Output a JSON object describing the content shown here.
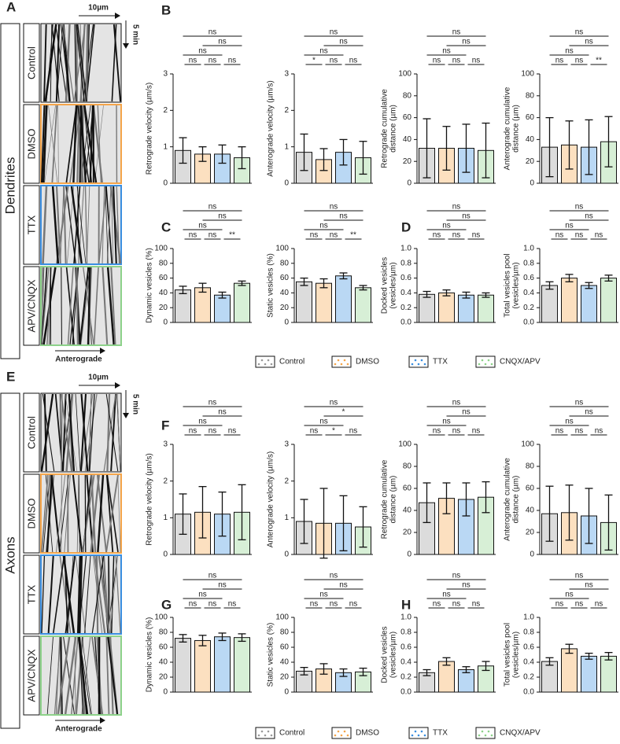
{
  "panels": {
    "dendrites": {
      "letter": "A",
      "region": "Dendrites",
      "scale_x": "10µm",
      "scale_t": "5 min",
      "direction": "Anterograde",
      "conditions": [
        "Control",
        "DMSO",
        "TTX",
        "APV/CNQX"
      ]
    },
    "axons": {
      "letter": "E",
      "region": "Axons",
      "scale_x": "10µm",
      "scale_t": "5 min",
      "direction": "Anterograde",
      "conditions": [
        "Control",
        "DMSO",
        "TTX",
        "APV/CNQX"
      ]
    }
  },
  "row_labels": [
    "B",
    "C",
    "D",
    "F",
    "G",
    "H"
  ],
  "legend": [
    {
      "name": "Control",
      "color": "#9a9a9a"
    },
    {
      "name": "DMSO",
      "color": "#f5a54a"
    },
    {
      "name": "TTX",
      "color": "#3a8ee0"
    },
    {
      "name": "CNQX/APV",
      "color": "#8dd28a"
    }
  ],
  "chart_data": [
    {
      "type": "bar",
      "ylabel": [
        "Retrograde velocity (µm/s)"
      ],
      "ylim": [
        0,
        3
      ],
      "yticks": [
        0,
        1,
        2,
        3
      ],
      "values": [
        0.9,
        0.8,
        0.8,
        0.7
      ],
      "errors": [
        0.35,
        0.2,
        0.25,
        0.3
      ],
      "significance": [
        "ns",
        "ns",
        "ns",
        "ns",
        "ns",
        "ns"
      ]
    },
    {
      "type": "bar",
      "ylabel": [
        "Anterograde velocity (µm/s)"
      ],
      "ylim": [
        0,
        3
      ],
      "yticks": [
        0,
        1,
        2,
        3
      ],
      "values": [
        0.85,
        0.65,
        0.85,
        0.7
      ],
      "errors": [
        0.5,
        0.3,
        0.35,
        0.45
      ],
      "significance": [
        "ns",
        "ns",
        "ns",
        "*",
        "ns",
        "ns"
      ]
    },
    {
      "type": "bar",
      "ylabel": [
        "Retrograde cumulative",
        "distance (µm)"
      ],
      "ylim": [
        0,
        100
      ],
      "yticks": [
        0,
        20,
        40,
        60,
        80,
        100
      ],
      "values": [
        32,
        32,
        32,
        30
      ],
      "errors": [
        27,
        20,
        22,
        25
      ],
      "significance": [
        "ns",
        "ns",
        "ns",
        "ns",
        "ns",
        "ns"
      ]
    },
    {
      "type": "bar",
      "ylabel": [
        "Anterograde cumulative",
        "distance (µm)"
      ],
      "ylim": [
        0,
        100
      ],
      "yticks": [
        0,
        20,
        40,
        60,
        80,
        100
      ],
      "values": [
        33,
        35,
        33,
        38
      ],
      "errors": [
        27,
        22,
        25,
        23
      ],
      "significance": [
        "ns",
        "ns",
        "ns",
        "ns",
        "ns",
        "**"
      ]
    },
    {
      "type": "bar",
      "ylabel": [
        "Dynamic vesicles (%)"
      ],
      "ylim": [
        0,
        100
      ],
      "yticks": [
        0,
        20,
        40,
        60,
        80,
        100
      ],
      "values": [
        44,
        47,
        37,
        53
      ],
      "errors": [
        5,
        6,
        4,
        3
      ],
      "significance": [
        "ns",
        "ns",
        "ns",
        "ns",
        "ns",
        "**"
      ]
    },
    {
      "type": "bar",
      "ylabel": [
        "Static vesicles (%)"
      ],
      "ylim": [
        0,
        100
      ],
      "yticks": [
        0,
        20,
        40,
        60,
        80,
        100
      ],
      "values": [
        55,
        53,
        63,
        47
      ],
      "errors": [
        5,
        6,
        4,
        3
      ],
      "significance": [
        "ns",
        "ns",
        "ns",
        "ns",
        "ns",
        "**"
      ]
    },
    {
      "type": "bar",
      "ylabel": [
        "Docked vesicles",
        "(vesicles/µm)"
      ],
      "ylim": [
        0,
        1
      ],
      "yticks": [
        {
          "value": 0,
          "label": "0.0"
        },
        {
          "value": 0.2,
          "label": "0.2"
        },
        {
          "value": 0.4,
          "label": "0.4"
        },
        {
          "value": 0.6,
          "label": "0.6"
        },
        {
          "value": 0.8,
          "label": "0.8"
        },
        {
          "value": 1,
          "label": "1.0"
        }
      ],
      "values": [
        0.38,
        0.4,
        0.37,
        0.37
      ],
      "errors": [
        0.04,
        0.04,
        0.04,
        0.03
      ],
      "significance": [
        "ns",
        "ns",
        "ns",
        "ns",
        "ns",
        "ns"
      ]
    },
    {
      "type": "bar",
      "ylabel": [
        "Total vesicles pool",
        "(vesicles/µm)"
      ],
      "ylim": [
        0,
        1
      ],
      "yticks": [
        {
          "value": 0,
          "label": "0.0"
        },
        {
          "value": 0.2,
          "label": "0.2"
        },
        {
          "value": 0.4,
          "label": "0.4"
        },
        {
          "value": 0.6,
          "label": "0.6"
        },
        {
          "value": 0.8,
          "label": "0.8"
        },
        {
          "value": 1,
          "label": "1.0"
        }
      ],
      "values": [
        0.5,
        0.6,
        0.5,
        0.6
      ],
      "errors": [
        0.05,
        0.05,
        0.04,
        0.04
      ],
      "significance": [
        "ns",
        "ns",
        "ns",
        "ns",
        "ns",
        "ns"
      ]
    },
    {
      "type": "bar",
      "ylabel": [
        "Retrograde velocity (µm/s)"
      ],
      "ylim": [
        0,
        3
      ],
      "yticks": [
        0,
        1,
        2,
        3
      ],
      "values": [
        1.1,
        1.15,
        1.1,
        1.15
      ],
      "errors": [
        0.55,
        0.7,
        0.6,
        0.75
      ],
      "significance": [
        "ns",
        "ns",
        "ns",
        "ns",
        "ns",
        "ns"
      ]
    },
    {
      "type": "bar",
      "ylabel": [
        "Anterograde velocity (µm/s)"
      ],
      "ylim": [
        0,
        3
      ],
      "yticks": [
        0,
        1,
        2,
        3
      ],
      "values": [
        0.9,
        0.85,
        0.85,
        0.75
      ],
      "errors": [
        0.6,
        0.95,
        0.75,
        0.55
      ],
      "significance": [
        "ns",
        "*",
        "ns",
        "ns",
        "*",
        "ns"
      ]
    },
    {
      "type": "bar",
      "ylabel": [
        "Retrograde cumulative",
        "distance (µm)"
      ],
      "ylim": [
        0,
        100
      ],
      "yticks": [
        0,
        20,
        40,
        60,
        80,
        100
      ],
      "values": [
        47,
        51,
        50,
        52
      ],
      "errors": [
        18,
        14,
        15,
        14
      ],
      "significance": [
        "ns",
        "ns",
        "ns",
        "ns",
        "ns",
        "ns"
      ]
    },
    {
      "type": "bar",
      "ylabel": [
        "Anterograde cumulative",
        "distance (µm)"
      ],
      "ylim": [
        0,
        100
      ],
      "yticks": [
        0,
        20,
        40,
        60,
        80,
        100
      ],
      "values": [
        37,
        38,
        35,
        29
      ],
      "errors": [
        25,
        25,
        25,
        25
      ],
      "significance": [
        "ns",
        "ns",
        "ns",
        "ns",
        "ns",
        "ns"
      ]
    },
    {
      "type": "bar",
      "ylabel": [
        "Dynamic vesicles (%)"
      ],
      "ylim": [
        0,
        100
      ],
      "yticks": [
        0,
        20,
        40,
        60,
        80,
        100
      ],
      "values": [
        72,
        69,
        74,
        73
      ],
      "errors": [
        5,
        7,
        5,
        5
      ],
      "significance": [
        "ns",
        "ns",
        "ns",
        "ns",
        "ns",
        "ns"
      ]
    },
    {
      "type": "bar",
      "ylabel": [
        "Static vesicles (%)"
      ],
      "ylim": [
        0,
        100
      ],
      "yticks": [
        0,
        20,
        40,
        60,
        80,
        100
      ],
      "values": [
        28,
        31,
        26,
        27
      ],
      "errors": [
        5,
        7,
        5,
        5
      ],
      "significance": [
        "ns",
        "ns",
        "ns",
        "ns",
        "ns",
        "ns"
      ]
    },
    {
      "type": "bar",
      "ylabel": [
        "Docked vesicles",
        "(vesicles/µm)"
      ],
      "ylim": [
        0,
        1
      ],
      "yticks": [
        {
          "value": 0,
          "label": "0.0"
        },
        {
          "value": 0.2,
          "label": "0.2"
        },
        {
          "value": 0.4,
          "label": "0.4"
        },
        {
          "value": 0.6,
          "label": "0.6"
        },
        {
          "value": 0.8,
          "label": "0.8"
        },
        {
          "value": 1,
          "label": "1.0"
        }
      ],
      "values": [
        0.26,
        0.41,
        0.3,
        0.35
      ],
      "errors": [
        0.04,
        0.05,
        0.04,
        0.06
      ],
      "significance": [
        "ns",
        "ns",
        "ns",
        "ns",
        "ns",
        "ns"
      ]
    },
    {
      "type": "bar",
      "ylabel": [
        "Total vesicles pool",
        "(vesicles/µm)"
      ],
      "ylim": [
        0,
        1
      ],
      "yticks": [
        {
          "value": 0,
          "label": "0.0"
        },
        {
          "value": 0.2,
          "label": "0.2"
        },
        {
          "value": 0.4,
          "label": "0.4"
        },
        {
          "value": 0.6,
          "label": "0.6"
        },
        {
          "value": 0.8,
          "label": "0.8"
        },
        {
          "value": 1,
          "label": "1.0"
        }
      ],
      "values": [
        0.41,
        0.58,
        0.48,
        0.48
      ],
      "errors": [
        0.05,
        0.06,
        0.04,
        0.05
      ],
      "significance": [
        "ns",
        "ns",
        "ns",
        "ns",
        "ns",
        "ns"
      ]
    }
  ]
}
